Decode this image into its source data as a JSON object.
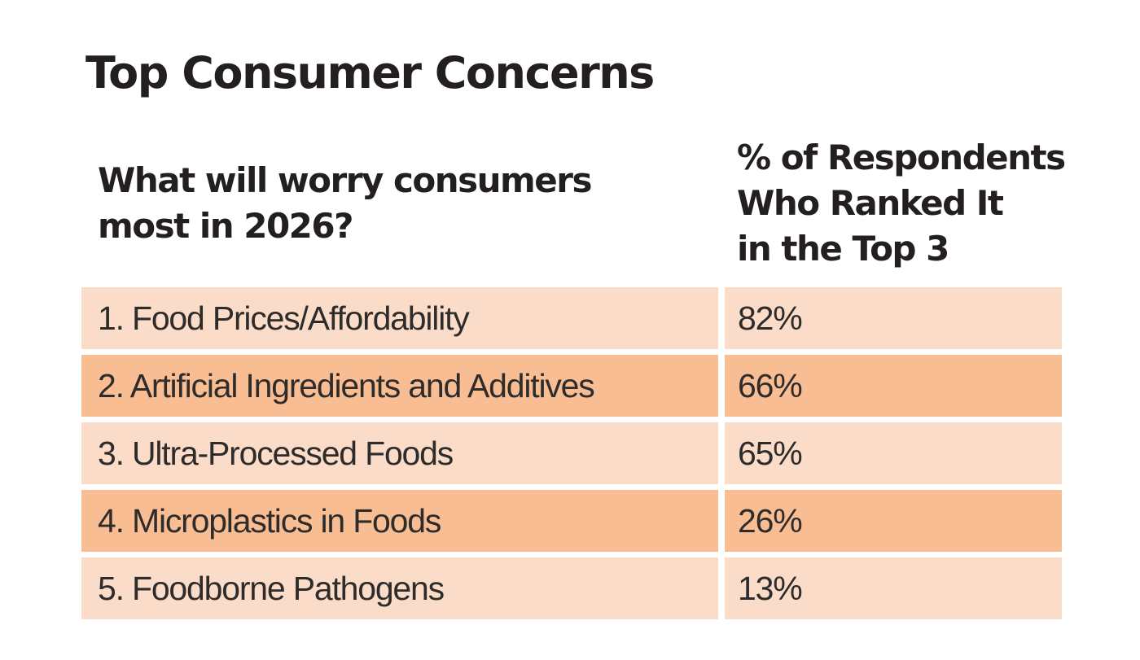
{
  "title": "Top Consumer Concerns",
  "table": {
    "col1_header": "What will worry consumers\nmost in 2026?",
    "col2_header": "% of Respondents\nWho Ranked It\nin the Top 3",
    "rows": [
      {
        "label": "1. Food Prices/Affordability",
        "value": "82%"
      },
      {
        "label": "2. Artificial Ingredients and Additives",
        "value": "66%"
      },
      {
        "label": "3. Ultra-Processed Foods",
        "value": "65%"
      },
      {
        "label": "4. Microplastics in Foods",
        "value": "26%"
      },
      {
        "label": "5. Foodborne Pathogens",
        "value": "13%"
      }
    ]
  },
  "chart_data": {
    "type": "table",
    "title": "Top Consumer Concerns",
    "question": "What will worry consumers most in 2026?",
    "metric": "% of Respondents Who Ranked It in the Top 3",
    "categories": [
      "Food Prices/Affordability",
      "Artificial Ingredients and Additives",
      "Ultra-Processed Foods",
      "Microplastics in Foods",
      "Foodborne Pathogens"
    ],
    "values": [
      82,
      66,
      65,
      26,
      13
    ],
    "value_unit": "%"
  },
  "colors": {
    "row_light": "#fbdcc8",
    "row_dark": "#f9bd93",
    "ink": "#231f20",
    "row_ink": "#2e2b2b"
  }
}
